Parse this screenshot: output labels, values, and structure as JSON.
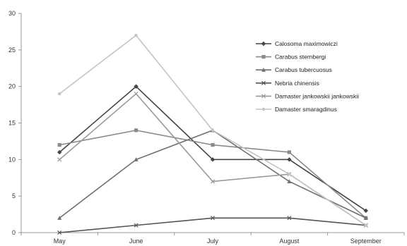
{
  "chart_data": {
    "type": "line",
    "categories": [
      "May",
      "June",
      "July",
      "August",
      "September"
    ],
    "ylim": [
      0,
      30
    ],
    "yticks": [
      0,
      5,
      10,
      15,
      20,
      25,
      30
    ],
    "grid": false,
    "legend_position": "top-right",
    "series": [
      {
        "name": "Calosoma maximowiczi",
        "values": [
          11,
          20,
          10,
          10,
          3
        ],
        "color": "#444444",
        "marker": "diamond"
      },
      {
        "name": "Carabus sternbergi",
        "values": [
          12,
          14,
          12,
          11,
          2
        ],
        "color": "#8a8a8a",
        "marker": "square"
      },
      {
        "name": "Carabus tubercuosus",
        "values": [
          2,
          10,
          14,
          7,
          2
        ],
        "color": "#707070",
        "marker": "triangle"
      },
      {
        "name": "Nebria chinensis",
        "values": [
          0,
          1,
          2,
          2,
          1
        ],
        "color": "#555555",
        "marker": "x"
      },
      {
        "name": "Damaster jankowskii  jankowskii",
        "values": [
          10,
          19,
          7,
          8,
          1
        ],
        "color": "#9a9a9a",
        "marker": "x"
      },
      {
        "name": "Damaster smaragdinus",
        "values": [
          19,
          27,
          14,
          8,
          1
        ],
        "color": "#c4c4c4",
        "marker": "circle"
      }
    ]
  }
}
